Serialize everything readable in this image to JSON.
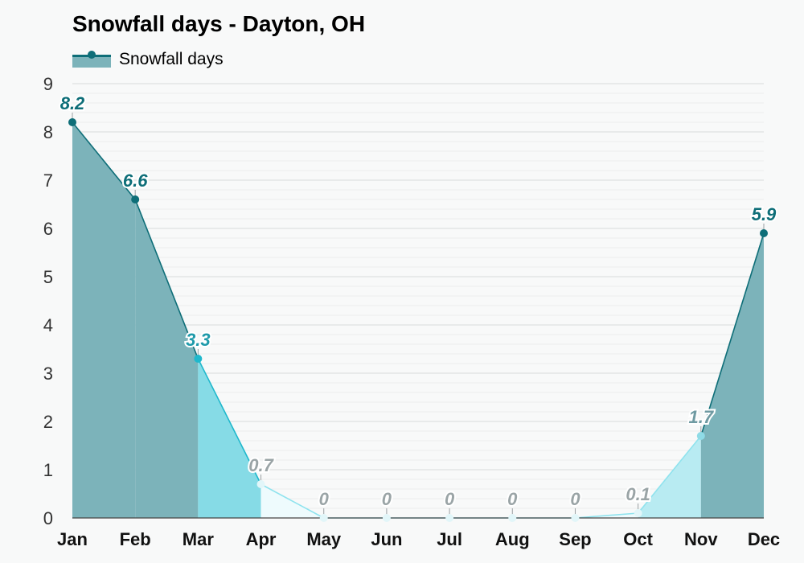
{
  "chart_data": {
    "type": "area",
    "title": "Snowfall days - Dayton, OH",
    "categories": [
      "Jan",
      "Feb",
      "Mar",
      "Apr",
      "May",
      "Jun",
      "Jul",
      "Aug",
      "Sep",
      "Oct",
      "Nov",
      "Dec"
    ],
    "series": [
      {
        "name": "Snowfall days",
        "values": [
          8.2,
          6.6,
          3.3,
          0.7,
          0,
          0,
          0,
          0,
          0,
          0.1,
          1.7,
          5.9
        ],
        "labels": [
          "8.2",
          "6.6",
          "3.3",
          "0.7",
          "0",
          "0",
          "0",
          "0",
          "0",
          "0.1",
          "1.7",
          "5.9"
        ]
      }
    ],
    "ylim": [
      0,
      9
    ],
    "yticks": [
      "0",
      "1",
      "2",
      "3",
      "4",
      "5",
      "6",
      "7",
      "8",
      "9"
    ],
    "xlabel": "",
    "ylabel": "",
    "grid": true,
    "legend": "top-left",
    "colors": {
      "heavy_fill": "#7cb3ba",
      "medium_fill": "#86dbe6",
      "light_fill": "#b8ebf2",
      "faint_fill": "#eefbfd",
      "line_dark": "#0e6e78",
      "line_medium": "#1fb8cc",
      "line_light": "#8fe3ee",
      "label_dark": "#0e6e78",
      "label_medium": "#1f9aaa",
      "label_light": "#6f9aa2",
      "label_faint": "#9aa4a6"
    }
  }
}
